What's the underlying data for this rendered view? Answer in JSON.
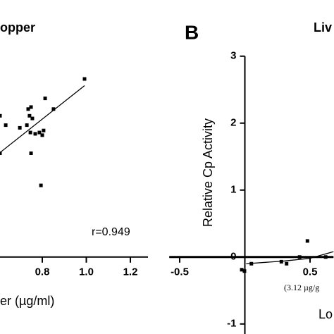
{
  "chart_data": [
    {
      "type": "scatter",
      "title": "opper",
      "xlabel": "er (µg/ml)",
      "annotation": "r=0.949",
      "xlim": [
        0.608,
        1.28
      ],
      "ylim": [
        -1.15,
        3.05
      ],
      "xticks": [
        {
          "value": 0.8,
          "label": "0.8"
        },
        {
          "value": 1.0,
          "label": "1.0"
        },
        {
          "value": 1.2,
          "label": "1.2"
        }
      ],
      "points": {
        "x": [
          0.608,
          0.634,
          0.698,
          0.73,
          0.736,
          0.749,
          0.742,
          0.755,
          0.746,
          0.749,
          0.768,
          0.787,
          0.8,
          0.806,
          0.813,
          0.851,
          0.992,
          0.794,
          0.608
        ],
        "y": [
          2.11,
          1.97,
          1.93,
          1.97,
          2.21,
          2.24,
          2.11,
          2.07,
          1.86,
          1.55,
          1.84,
          1.86,
          1.82,
          1.89,
          2.37,
          2.21,
          2.66,
          1.07,
          1.55
        ]
      },
      "fit": {
        "x": [
          0.608,
          0.992
        ],
        "y": [
          1.56,
          2.56
        ]
      },
      "color": "#000000"
    },
    {
      "type": "scatter",
      "title": "Liv",
      "panel": "B",
      "ylabel": "Relative Cp Activity",
      "xlabel": "Lo",
      "xsublabel": "(3.12 µg/g",
      "xlim": [
        -0.58,
        0.68
      ],
      "ylim": [
        -1.15,
        3.05
      ],
      "xticks": [
        -0.5,
        0.5
      ],
      "yticks": [
        -1,
        0,
        1,
        2,
        3
      ],
      "points": {
        "x": [
          -0.024,
          -0.003,
          0.05,
          0.28,
          0.32,
          0.42,
          0.48,
          0.62
        ],
        "y": [
          -0.19,
          -0.21,
          -0.1,
          -0.07,
          -0.1,
          0.0,
          0.24,
          0.0
        ]
      },
      "fit": {
        "x": [
          0.01,
          0.3,
          0.5,
          0.68
        ],
        "y": [
          -0.1,
          -0.06,
          -0.02,
          0.08
        ]
      },
      "color": "#000000"
    }
  ]
}
